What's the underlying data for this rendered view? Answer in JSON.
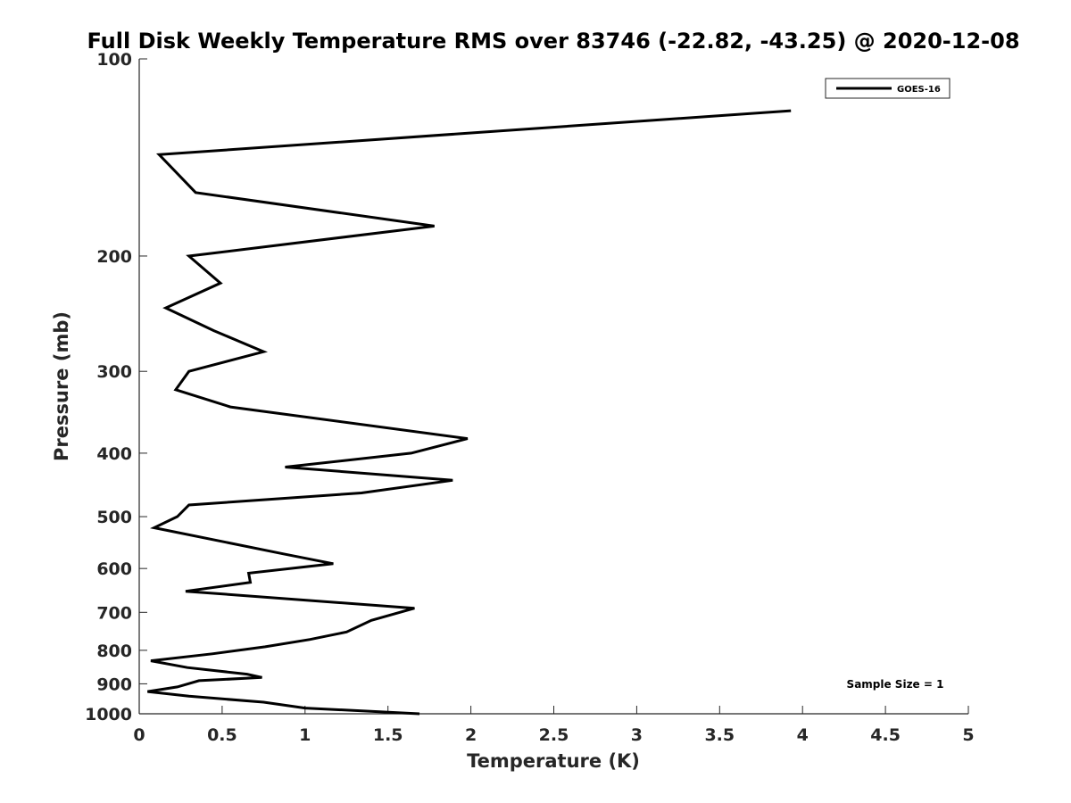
{
  "chart_data": {
    "type": "line",
    "title": "Full Disk Weekly Temperature RMS over 83746 (-22.82, -43.25) @ 2020-12-08",
    "xlabel": "Temperature (K)",
    "ylabel": "Pressure (mb)",
    "xlim": [
      0,
      5
    ],
    "ylim": [
      100,
      1000
    ],
    "y_scale": "log",
    "y_reversed": true,
    "grid": false,
    "legend_position": "top-right",
    "x_ticks": [
      "0",
      "0.5",
      "1",
      "1.5",
      "2",
      "2.5",
      "3",
      "3.5",
      "4",
      "4.5",
      "5"
    ],
    "x_tick_values": [
      0,
      0.5,
      1,
      1.5,
      2,
      2.5,
      3,
      3.5,
      4,
      4.5,
      5
    ],
    "y_ticks": [
      "100",
      "200",
      "300",
      "400",
      "500",
      "600",
      "700",
      "800",
      "900",
      "1000"
    ],
    "y_tick_values": [
      100,
      200,
      300,
      400,
      500,
      600,
      700,
      800,
      900,
      1000
    ],
    "annotation": "Sample Size = 1",
    "line_color": "#000000",
    "series": [
      {
        "name": "GOES-16",
        "points": [
          [
            3.93,
            120
          ],
          [
            0.12,
            140
          ],
          [
            0.34,
            160
          ],
          [
            1.78,
            180
          ],
          [
            0.3,
            200
          ],
          [
            0.49,
            220
          ],
          [
            0.16,
            240
          ],
          [
            0.45,
            260
          ],
          [
            0.75,
            280
          ],
          [
            0.3,
            300
          ],
          [
            0.22,
            320
          ],
          [
            0.55,
            340
          ],
          [
            1.98,
            380
          ],
          [
            1.64,
            400
          ],
          [
            0.88,
            420
          ],
          [
            1.89,
            440
          ],
          [
            1.34,
            460
          ],
          [
            0.3,
            480
          ],
          [
            0.23,
            500
          ],
          [
            0.09,
            520
          ],
          [
            0.87,
            570
          ],
          [
            1.17,
            590
          ],
          [
            0.66,
            610
          ],
          [
            0.67,
            630
          ],
          [
            0.28,
            650
          ],
          [
            1.66,
            690
          ],
          [
            1.4,
            720
          ],
          [
            1.25,
            750
          ],
          [
            1.03,
            770
          ],
          [
            0.76,
            790
          ],
          [
            0.44,
            810
          ],
          [
            0.07,
            830
          ],
          [
            0.29,
            850
          ],
          [
            0.65,
            870
          ],
          [
            0.74,
            880
          ],
          [
            0.36,
            890
          ],
          [
            0.23,
            910
          ],
          [
            0.05,
            925
          ],
          [
            0.3,
            940
          ],
          [
            0.75,
            960
          ],
          [
            1.0,
            980
          ],
          [
            1.69,
            1000
          ]
        ]
      }
    ]
  }
}
